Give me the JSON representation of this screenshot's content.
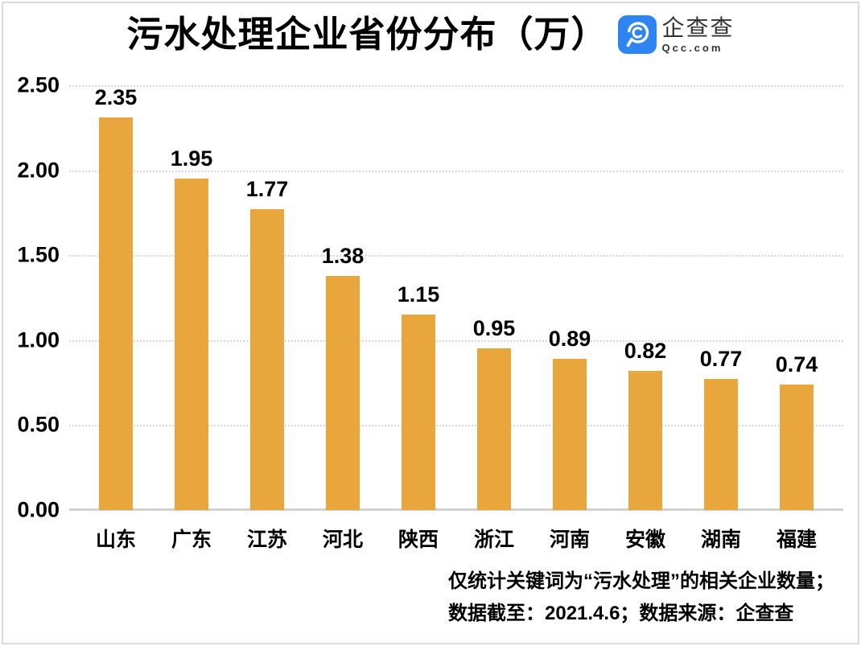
{
  "header": {
    "title": "污水处理企业省份分布（万）",
    "logo": {
      "name": "企查查",
      "domain": "Qcc.com",
      "brand_color": "#2E85F2"
    }
  },
  "chart_data": {
    "type": "bar",
    "title": "污水处理企业省份分布（万）",
    "categories": [
      "山东",
      "广东",
      "江苏",
      "河北",
      "陕西",
      "浙江",
      "河南",
      "安徽",
      "湖南",
      "福建"
    ],
    "values": [
      2.35,
      1.95,
      1.77,
      1.38,
      1.15,
      0.95,
      0.89,
      0.82,
      0.77,
      0.74
    ],
    "value_labels": [
      "2.35",
      "1.95",
      "1.77",
      "1.38",
      "1.15",
      "0.95",
      "0.89",
      "0.82",
      "0.77",
      "0.74"
    ],
    "xlabel": "",
    "ylabel": "",
    "ylim": [
      0,
      2.5
    ],
    "y_ticks": [
      "2.50",
      "2.00",
      "1.50",
      "1.00",
      "0.50",
      "0.00"
    ],
    "grid": "horizontal-dotted",
    "legend": "none",
    "bar_color": "#E9A63C",
    "gridline_color": "#D8D8D8",
    "baseline_color": "#D2D2D2"
  },
  "footer": {
    "line1": "仅统计关键词为“污水处理”的相关企业数量；",
    "line2": "数据截至：2021.4.6；数据来源：企查查"
  }
}
